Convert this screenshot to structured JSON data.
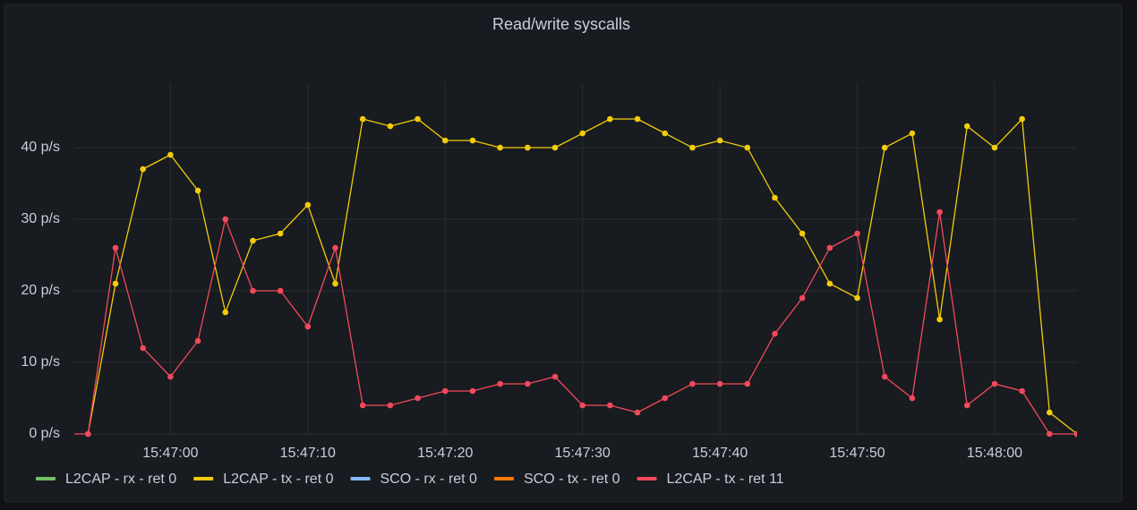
{
  "chart_data": {
    "type": "line",
    "title": "Read/write syscalls",
    "x": [
      "15:46:52",
      "15:46:54",
      "15:46:56",
      "15:46:58",
      "15:47:00",
      "15:47:02",
      "15:47:04",
      "15:47:06",
      "15:47:08",
      "15:47:10",
      "15:47:12",
      "15:47:14",
      "15:47:16",
      "15:47:18",
      "15:47:20",
      "15:47:22",
      "15:47:24",
      "15:47:26",
      "15:47:28",
      "15:47:30",
      "15:47:32",
      "15:47:34",
      "15:47:36",
      "15:47:38",
      "15:47:40",
      "15:47:42",
      "15:47:44",
      "15:47:46",
      "15:47:48",
      "15:47:50",
      "15:47:52",
      "15:47:54",
      "15:47:56",
      "15:47:58",
      "15:48:00",
      "15:48:02",
      "15:48:04",
      "15:48:06"
    ],
    "xlim": [
      "15:46:53",
      "15:48:06"
    ],
    "xticks": [
      "15:47:00",
      "15:47:10",
      "15:47:20",
      "15:47:30",
      "15:47:40",
      "15:47:50",
      "15:48:00"
    ],
    "ylim": [
      0,
      49
    ],
    "yticks": [
      {
        "value": 0,
        "label": "0 p/s"
      },
      {
        "value": 10,
        "label": "10 p/s"
      },
      {
        "value": 20,
        "label": "20 p/s"
      },
      {
        "value": 30,
        "label": "30 p/s"
      },
      {
        "value": 40,
        "label": "40 p/s"
      }
    ],
    "grid": true,
    "legend": "bottom",
    "series": [
      {
        "name": "L2CAP - rx - ret 0",
        "color": "#73bf69",
        "hidden": true
      },
      {
        "name": "L2CAP - tx - ret 0",
        "color": "#f2cc0c",
        "values": [
          null,
          0,
          21,
          37,
          39,
          34,
          17,
          27,
          28,
          32,
          21,
          44,
          43,
          44,
          41,
          41,
          40,
          40,
          40,
          42,
          44,
          44,
          42,
          40,
          41,
          40,
          33,
          28,
          21,
          19,
          40,
          42,
          16,
          43,
          40,
          44,
          3,
          0
        ]
      },
      {
        "name": "SCO - rx - ret 0",
        "color": "#8ab8ff",
        "hidden": true
      },
      {
        "name": "SCO - tx - ret 0",
        "color": "#ff780a",
        "hidden": true
      },
      {
        "name": "L2CAP - tx - ret 11",
        "color": "#f2495c",
        "values": [
          0,
          0,
          26,
          12,
          8,
          13,
          30,
          20,
          20,
          15,
          26,
          4,
          4,
          5,
          6,
          6,
          7,
          7,
          8,
          4,
          4,
          3,
          5,
          7,
          7,
          7,
          14,
          19,
          26,
          28,
          8,
          5,
          31,
          4,
          7,
          6,
          0,
          0
        ]
      }
    ]
  }
}
